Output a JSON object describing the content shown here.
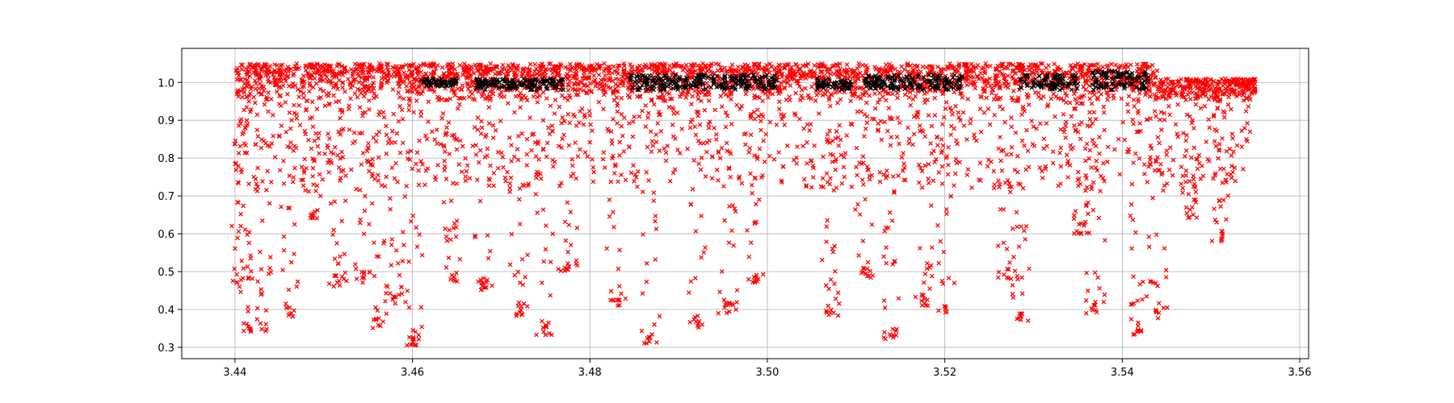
{
  "chart_data": {
    "type": "scatter",
    "title": "",
    "xlabel": "",
    "ylabel": "",
    "xlim": [
      3.434,
      3.561
    ],
    "ylim": [
      0.27,
      1.09
    ],
    "grid": true,
    "marker": "x",
    "x_ticks": [
      3.44,
      3.46,
      3.48,
      3.5,
      3.52,
      3.54,
      3.56
    ],
    "x_tick_labels": [
      "3.44",
      "3.46",
      "3.48",
      "3.50",
      "3.52",
      "3.54",
      "3.56"
    ],
    "y_ticks": [
      0.3,
      0.4,
      0.5,
      0.6,
      0.7,
      0.8,
      0.9,
      1.0
    ],
    "y_tick_labels": [
      "0.3",
      "0.4",
      "0.5",
      "0.6",
      "0.7",
      "0.8",
      "0.9",
      "1.0"
    ],
    "series": [
      {
        "color": "#ff0000",
        "x_range": [
          3.44,
          3.555
        ],
        "dense_band": [
          0.95,
          1.05
        ],
        "dips": [
          {
            "x": 3.4405,
            "min": 0.47
          },
          {
            "x": 3.4415,
            "min": 0.34
          },
          {
            "x": 3.4432,
            "min": 0.34
          },
          {
            "x": 3.446,
            "min": 0.38
          },
          {
            "x": 3.4486,
            "min": 0.64
          },
          {
            "x": 3.4515,
            "min": 0.46
          },
          {
            "x": 3.4545,
            "min": 0.47
          },
          {
            "x": 3.456,
            "min": 0.35
          },
          {
            "x": 3.458,
            "min": 0.41
          },
          {
            "x": 3.46,
            "min": 0.3
          },
          {
            "x": 3.4645,
            "min": 0.47
          },
          {
            "x": 3.468,
            "min": 0.45
          },
          {
            "x": 3.472,
            "min": 0.38
          },
          {
            "x": 3.475,
            "min": 0.33
          },
          {
            "x": 3.4775,
            "min": 0.5
          },
          {
            "x": 3.483,
            "min": 0.41
          },
          {
            "x": 3.4868,
            "min": 0.31
          },
          {
            "x": 3.492,
            "min": 0.35
          },
          {
            "x": 3.4955,
            "min": 0.39
          },
          {
            "x": 3.4985,
            "min": 0.47
          },
          {
            "x": 3.507,
            "min": 0.38
          },
          {
            "x": 3.511,
            "min": 0.48
          },
          {
            "x": 3.5142,
            "min": 0.32
          },
          {
            "x": 3.5175,
            "min": 0.41
          },
          {
            "x": 3.52,
            "min": 0.39
          },
          {
            "x": 3.527,
            "min": 0.48
          },
          {
            "x": 3.5285,
            "min": 0.37
          },
          {
            "x": 3.5355,
            "min": 0.6
          },
          {
            "x": 3.537,
            "min": 0.39
          },
          {
            "x": 3.542,
            "min": 0.33
          },
          {
            "x": 3.544,
            "min": 0.37
          },
          {
            "x": 3.5475,
            "min": 0.64
          },
          {
            "x": 3.551,
            "min": 0.58
          }
        ]
      },
      {
        "color": "#000000",
        "segments": [
          {
            "x": [
              3.461,
              3.465
            ],
            "y": [
              0.99,
              1.01
            ]
          },
          {
            "x": [
              3.467,
              3.477
            ],
            "y": [
              0.98,
              1.01
            ]
          },
          {
            "x": [
              3.4845,
              3.501
            ],
            "y": [
              0.98,
              1.02
            ]
          },
          {
            "x": [
              3.5055,
              3.5095
            ],
            "y": [
              0.98,
              1.01
            ]
          },
          {
            "x": [
              3.511,
              3.522
            ],
            "y": [
              0.98,
              1.02
            ]
          },
          {
            "x": [
              3.5285,
              3.535
            ],
            "y": [
              0.98,
              1.02
            ]
          },
          {
            "x": [
              3.5365,
              3.543
            ],
            "y": [
              0.98,
              1.03
            ]
          }
        ]
      }
    ]
  }
}
